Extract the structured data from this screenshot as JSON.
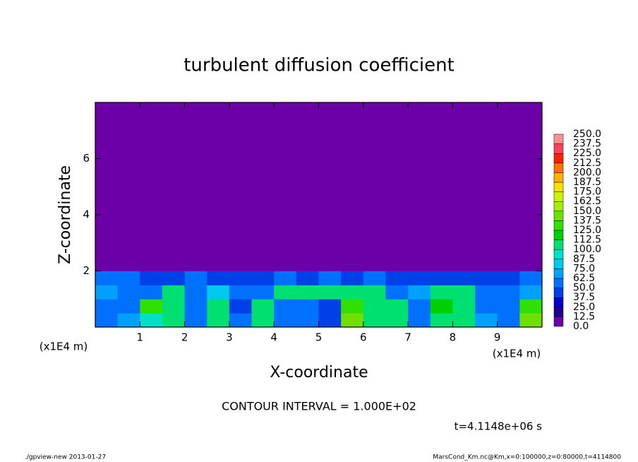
{
  "chart_data": {
    "type": "heatmap",
    "title": "turbulent diffusion coefficient",
    "xlabel": "X-coordinate",
    "ylabel": "Z-coordinate",
    "x_unit": "(x1E4 m)",
    "x_unit_right": "(x1E4 m)",
    "annotation": "CONTOUR INTERVAL = 1.000E+02",
    "time_label": "t=4.1148e+06 s",
    "footer_left": "./gpview-new  2013-01-27",
    "footer_right": "MarsCond_Km.nc@Km,x=0:100000,z=0:80000,t=4114800",
    "xlim": [
      0,
      10
    ],
    "ylim": [
      0,
      8
    ],
    "xticks": [
      1,
      2,
      3,
      4,
      5,
      6,
      7,
      8,
      9
    ],
    "yticks": [
      2,
      4,
      6
    ],
    "x_edges": [
      0,
      0.5,
      1,
      1.5,
      2,
      2.5,
      3,
      3.5,
      4,
      4.5,
      5,
      5.5,
      6,
      6.5,
      7,
      7.5,
      8,
      8.5,
      9,
      9.5,
      10
    ],
    "z_edges": [
      0,
      0.5,
      1,
      1.5,
      2,
      8
    ],
    "values": [
      [
        60,
        70,
        90,
        110,
        50,
        100,
        60,
        110,
        50,
        60,
        40,
        140,
        110,
        100,
        60,
        110,
        100,
        70,
        60,
        140
      ],
      [
        50,
        60,
        130,
        105,
        50,
        100,
        40,
        110,
        60,
        50,
        45,
        130,
        110,
        105,
        50,
        120,
        110,
        60,
        50,
        130
      ],
      [
        70,
        55,
        60,
        100,
        60,
        80,
        55,
        50,
        100,
        110,
        100,
        105,
        110,
        60,
        70,
        110,
        105,
        60,
        55,
        70
      ],
      [
        55,
        50,
        45,
        40,
        50,
        40,
        40,
        45,
        50,
        45,
        50,
        45,
        50,
        40,
        40,
        45,
        40,
        45,
        40,
        50
      ],
      [
        0,
        0,
        0,
        0,
        0,
        0,
        0,
        0,
        0,
        0,
        0,
        0,
        0,
        0,
        0,
        0,
        0,
        0,
        0,
        0
      ]
    ],
    "levels": [
      {
        "value": 0,
        "label": "0.0"
      },
      12.5,
      25,
      37.5,
      50,
      62.5,
      75,
      87.5,
      100,
      112.5,
      125,
      137.5,
      150,
      162.5,
      175,
      187.5,
      200,
      212.5,
      225,
      237.5,
      250
    ],
    "level_labels": [
      "0.0",
      "12.5",
      "25.0",
      "37.5",
      "50.0",
      "62.5",
      "75.0",
      "87.5",
      "100.0",
      "112.5",
      "125.0",
      "137.5",
      "150.0",
      "162.5",
      "175.0",
      "187.5",
      "200.0",
      "212.5",
      "225.0",
      "237.5",
      "250.0"
    ],
    "colors": [
      "#6c00a8",
      "#200090",
      "#0000d0",
      "#0040e8",
      "#0070ff",
      "#00a0ff",
      "#00c8f0",
      "#00e0c8",
      "#00e070",
      "#00d000",
      "#30e000",
      "#70e000",
      "#a0f000",
      "#d0f000",
      "#ffe000",
      "#ffb000",
      "#ff7000",
      "#ff2000",
      "#ff4060",
      "#ff9090"
    ]
  }
}
